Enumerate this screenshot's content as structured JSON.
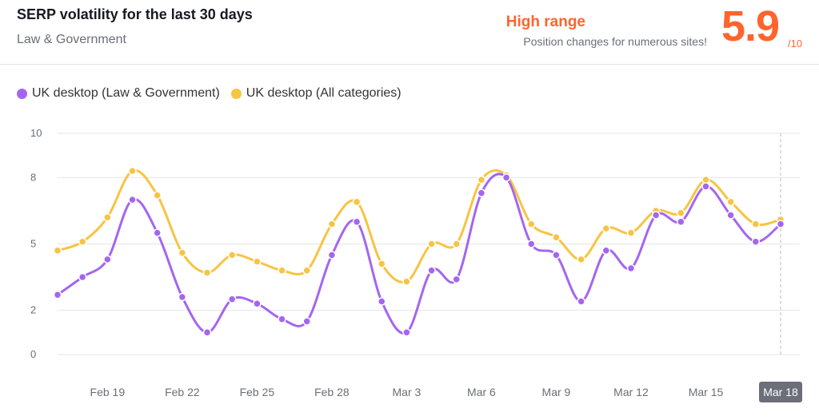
{
  "header": {
    "title": "SERP volatility for the last 30 days",
    "subtitle": "Law & Government",
    "range_label": "High range",
    "range_description": "Position changes for numerous sites!",
    "score": "5.9",
    "score_max": "/10"
  },
  "colors": {
    "accent": "#ff642d",
    "series_1": "#a466f0",
    "series_2": "#f7c443",
    "grid": "#e5e5e8"
  },
  "chart_data": {
    "type": "line",
    "x": [
      "Feb 17",
      "Feb 18",
      "Feb 19",
      "Feb 20",
      "Feb 21",
      "Feb 22",
      "Feb 23",
      "Feb 24",
      "Feb 25",
      "Feb 26",
      "Feb 27",
      "Feb 28",
      "Mar 1",
      "Mar 2",
      "Mar 3",
      "Mar 4",
      "Mar 5",
      "Mar 6",
      "Mar 7",
      "Mar 8",
      "Mar 9",
      "Mar 10",
      "Mar 11",
      "Mar 12",
      "Mar 13",
      "Mar 14",
      "Mar 15",
      "Mar 16",
      "Mar 17",
      "Mar 18"
    ],
    "x_tick_labels": [
      "Feb 19",
      "Feb 22",
      "Feb 25",
      "Feb 28",
      "Mar 3",
      "Mar 6",
      "Mar 9",
      "Mar 12",
      "Mar 15",
      "Mar 18"
    ],
    "highlighted_x": "Mar 18",
    "y_ticks": [
      "0",
      "2",
      "5",
      "8",
      "10"
    ],
    "ylim": [
      0,
      10
    ],
    "grid": true,
    "legend_position": "top-left",
    "series": [
      {
        "name": "UK desktop (Law & Government)",
        "values": [
          2.7,
          3.5,
          4.3,
          7.0,
          5.5,
          2.6,
          1.0,
          2.5,
          2.3,
          1.6,
          1.5,
          4.5,
          6.0,
          2.4,
          1.0,
          3.8,
          3.4,
          7.3,
          8.0,
          5.0,
          4.5,
          2.4,
          4.7,
          3.9,
          6.3,
          6.0,
          7.6,
          6.3,
          5.1,
          5.9
        ]
      },
      {
        "name": "UK desktop (All categories)",
        "values": [
          4.7,
          5.1,
          6.2,
          8.3,
          7.2,
          4.6,
          3.7,
          4.5,
          4.2,
          3.8,
          3.8,
          5.9,
          6.9,
          4.1,
          3.3,
          5.0,
          5.0,
          7.9,
          8.1,
          5.9,
          5.3,
          4.3,
          5.7,
          5.5,
          6.5,
          6.4,
          7.9,
          6.9,
          5.9,
          6.1
        ]
      }
    ]
  }
}
